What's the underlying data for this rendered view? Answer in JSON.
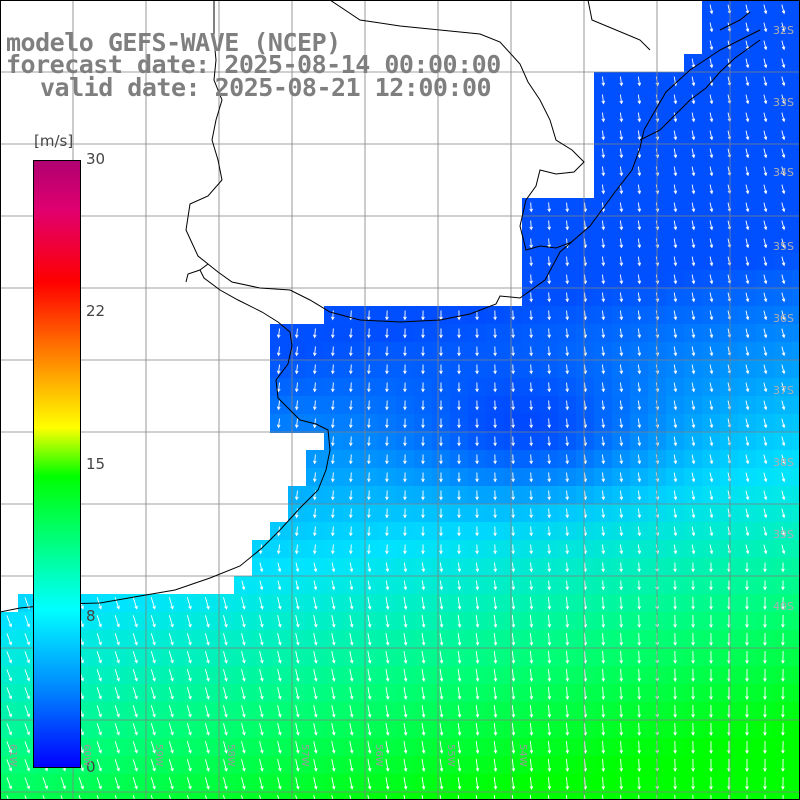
{
  "title": {
    "line1": "modelo GEFS-WAVE (NCEP)",
    "line2": "forecast date: 2025-08-14 00:00:00",
    "line3": "valid date: 2025-08-21 12:00:00"
  },
  "colorbar": {
    "unit": "[m/s]",
    "ticks": [
      "30",
      "22",
      "15",
      "8",
      "0"
    ],
    "min": 0,
    "max": 30
  },
  "lat_labels": [
    "32S",
    "33S",
    "34S",
    "35S",
    "36S",
    "37S",
    "38S",
    "39S",
    "40S"
  ],
  "lon_labels": [
    "61W",
    "60W",
    "59W",
    "58W",
    "57W",
    "56W",
    "55W",
    "54W"
  ],
  "colors": {
    "land": "#ffffff",
    "coast": "#000000",
    "grid": "#808080",
    "arrow": "#ffffff",
    "title": "#7f7f7f"
  }
}
